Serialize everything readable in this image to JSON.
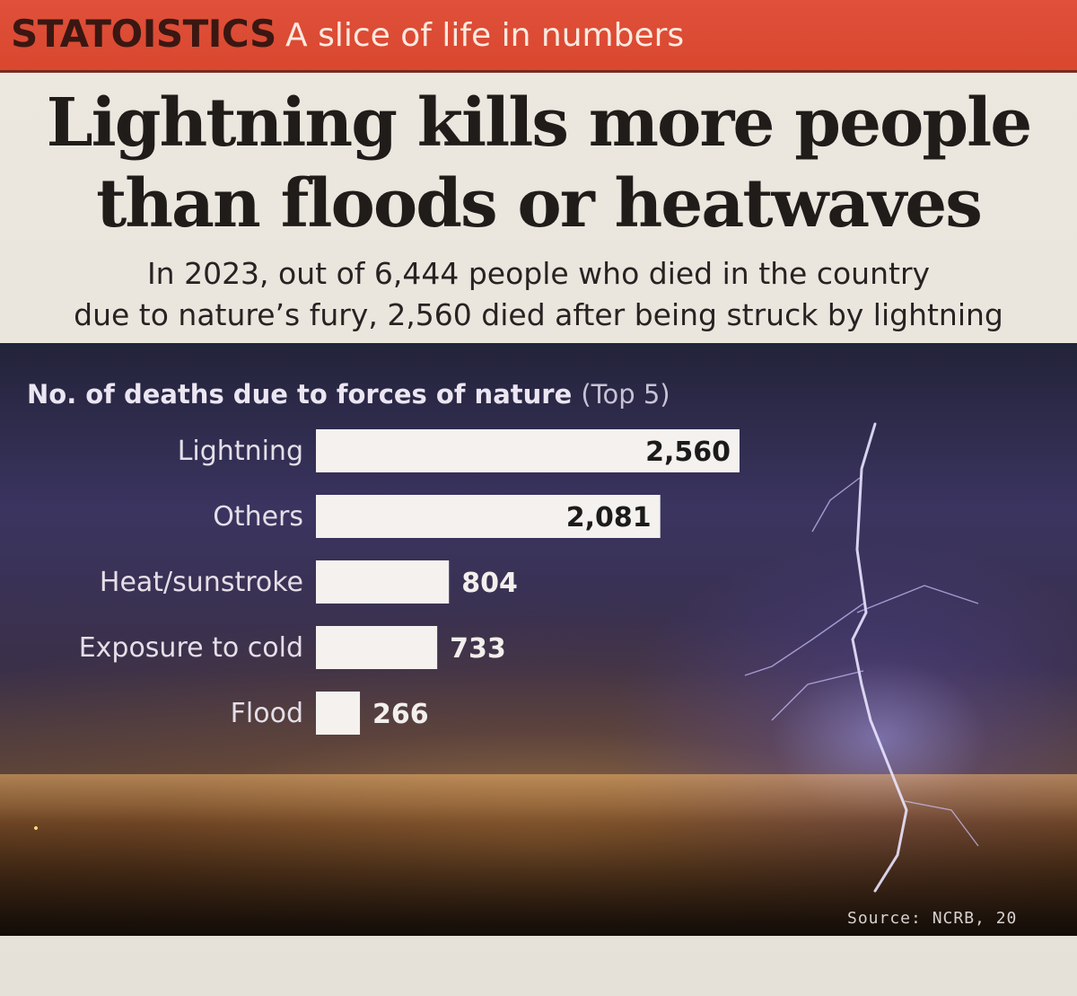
{
  "header": {
    "brand": "STATOISTICS",
    "tagline": "A slice of life in numbers"
  },
  "headline": {
    "line1": "Lightning kills more people",
    "line2": "than floods or heatwaves"
  },
  "subhead": {
    "line1": "In 2023, out of 6,444 people who died in the country",
    "line2": "due to nature’s fury, 2,560 died after being struck by lightning"
  },
  "chart_data": {
    "type": "bar",
    "orientation": "horizontal",
    "title": "No. of deaths due to forces of nature",
    "title_note": "(Top 5)",
    "categories": [
      "Lightning",
      "Others",
      "Heat/sunstroke",
      "Exposure to cold",
      "Flood"
    ],
    "values": [
      2560,
      2081,
      804,
      733,
      266
    ],
    "value_labels": [
      "2,560",
      "2,081",
      "804",
      "733",
      "266"
    ],
    "xlabel": "",
    "ylabel": "",
    "grid": false
  },
  "source": "Source: NCRB, 20",
  "colors": {
    "band": "#d9472f",
    "brand_text": "#3a1712",
    "bar_fill": "#f4f1ee",
    "value_inside": "#1b1b1b",
    "value_outside": "#f2efec"
  }
}
